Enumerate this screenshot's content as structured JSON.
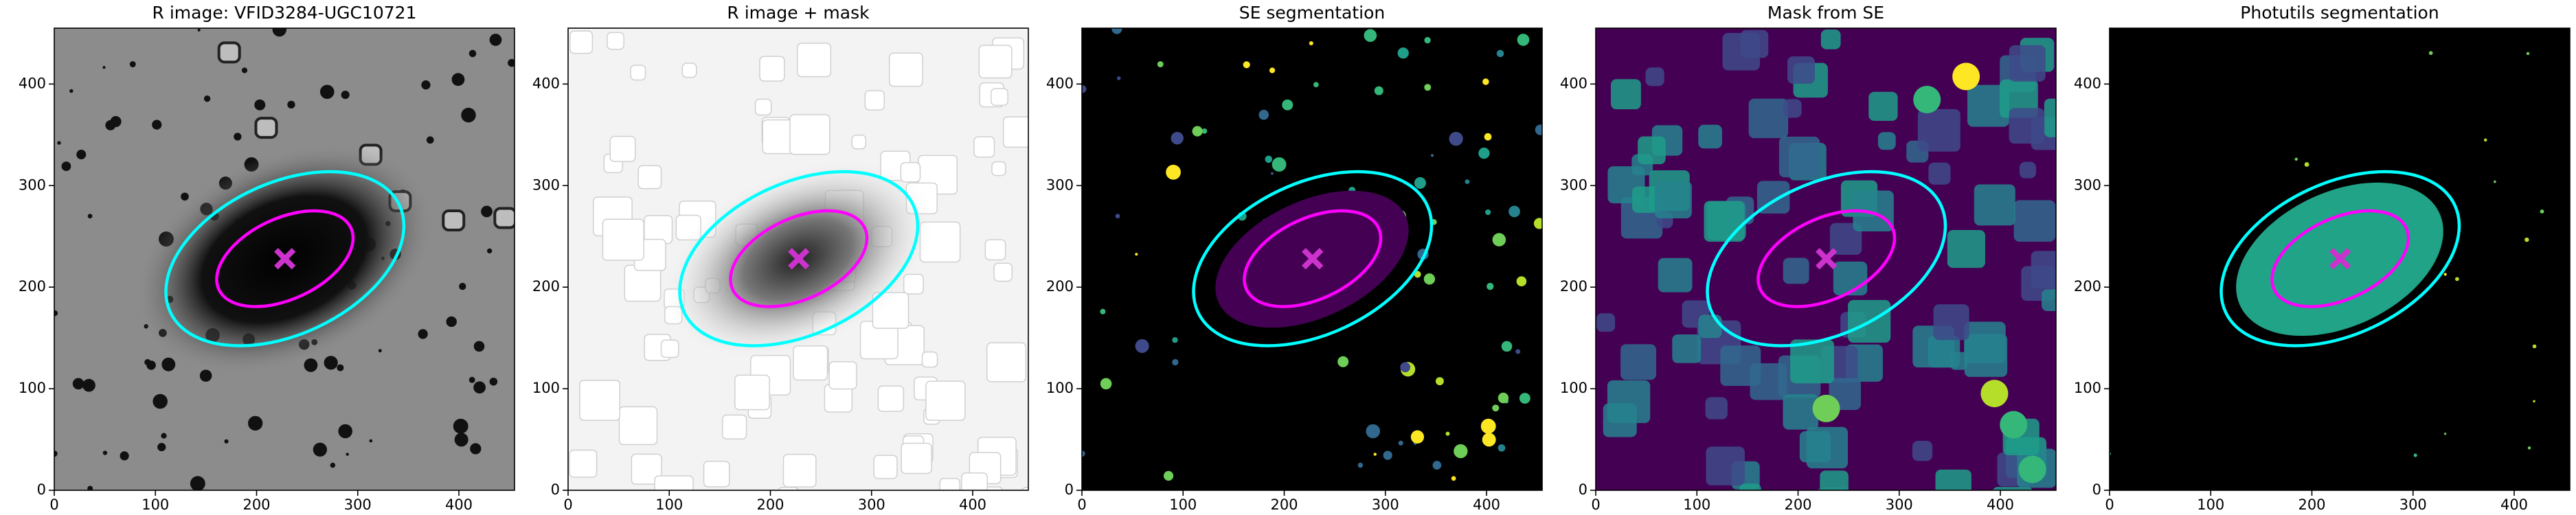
{
  "chart_data": [
    {
      "type": "image",
      "title": "R image: VFID3284-UGC10721",
      "colormap": "gray",
      "xlim": [
        0,
        455
      ],
      "ylim": [
        0,
        455
      ],
      "xticks": [
        0,
        100,
        200,
        300,
        400
      ],
      "yticks": [
        0,
        100,
        200,
        300,
        400
      ],
      "ellipses": [
        {
          "x": 228,
          "y": 228,
          "a": 125,
          "b": 75,
          "angle": 25,
          "color": "#00ffff"
        },
        {
          "x": 228,
          "y": 228,
          "a": 72,
          "b": 40,
          "angle": 25,
          "color": "#ff00ff"
        }
      ],
      "marker": {
        "x": 228,
        "y": 228,
        "color": "#cc33cc"
      }
    },
    {
      "type": "image",
      "title": "R image + mask",
      "colormap": "gray_r",
      "xlim": [
        0,
        455
      ],
      "ylim": [
        0,
        455
      ],
      "xticks": [
        0,
        100,
        200,
        300,
        400
      ],
      "yticks": [
        0,
        100,
        200,
        300,
        400
      ],
      "ellipses": [
        {
          "x": 228,
          "y": 228,
          "a": 125,
          "b": 75,
          "angle": 25,
          "color": "#00ffff"
        },
        {
          "x": 228,
          "y": 228,
          "a": 72,
          "b": 40,
          "angle": 25,
          "color": "#ff00ff"
        }
      ],
      "marker": {
        "x": 228,
        "y": 228,
        "color": "#cc33cc"
      }
    },
    {
      "type": "image",
      "title": "SE segmentation",
      "colormap": "segmentation",
      "xlim": [
        0,
        455
      ],
      "ylim": [
        0,
        455
      ],
      "xticks": [
        0,
        100,
        200,
        300,
        400
      ],
      "yticks": [
        0,
        100,
        200,
        300,
        400
      ],
      "ellipses": [
        {
          "x": 228,
          "y": 228,
          "a": 125,
          "b": 75,
          "angle": 25,
          "color": "#00ffff"
        },
        {
          "x": 228,
          "y": 228,
          "a": 72,
          "b": 40,
          "angle": 25,
          "color": "#ff00ff"
        }
      ],
      "marker": {
        "x": 228,
        "y": 228,
        "color": "#cc33cc"
      }
    },
    {
      "type": "image",
      "title": "Mask from SE",
      "colormap": "viridis",
      "xlim": [
        0,
        455
      ],
      "ylim": [
        0,
        455
      ],
      "xticks": [
        0,
        100,
        200,
        300,
        400
      ],
      "yticks": [
        0,
        100,
        200,
        300,
        400
      ],
      "ellipses": [
        {
          "x": 228,
          "y": 228,
          "a": 125,
          "b": 75,
          "angle": 25,
          "color": "#00ffff"
        },
        {
          "x": 228,
          "y": 228,
          "a": 72,
          "b": 40,
          "angle": 25,
          "color": "#ff00ff"
        }
      ],
      "marker": {
        "x": 228,
        "y": 228,
        "color": "#cc33cc"
      }
    },
    {
      "type": "image",
      "title": "Photutils segmentation",
      "colormap": "photutils",
      "xlim": [
        0,
        455
      ],
      "ylim": [
        0,
        455
      ],
      "xticks": [
        0,
        100,
        200,
        300,
        400
      ],
      "yticks": [
        0,
        100,
        200,
        300,
        400
      ],
      "ellipses": [
        {
          "x": 228,
          "y": 228,
          "a": 125,
          "b": 75,
          "angle": 25,
          "color": "#00ffff"
        },
        {
          "x": 228,
          "y": 228,
          "a": 72,
          "b": 40,
          "angle": 25,
          "color": "#ff00ff"
        }
      ],
      "marker": {
        "x": 228,
        "y": 228,
        "color": "#cc33cc"
      }
    }
  ]
}
